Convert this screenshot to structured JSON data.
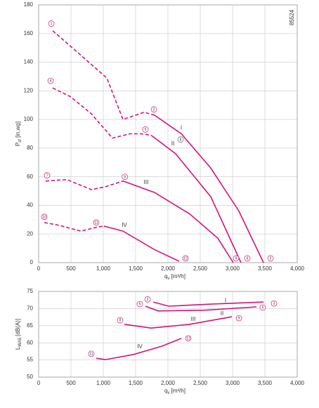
{
  "chart_data": [
    {
      "type": "line",
      "code": "85524",
      "xlabel": {
        "main": "q",
        "sub": "v",
        "unit": "[m³/h]"
      },
      "ylabel": {
        "main": "P",
        "sub": "sf",
        "unit": "[in,wg]"
      },
      "xlim": [
        0,
        4000
      ],
      "ylim": [
        0,
        180
      ],
      "xticks": [
        0,
        500,
        {
          "value": 1000,
          "label": "1,000"
        },
        {
          "value": 1500,
          "label": "1,500"
        },
        {
          "value": 2000,
          "label": "2,000"
        },
        {
          "value": 2500,
          "label": "2,500"
        },
        {
          "value": 3000,
          "label": "3,000"
        },
        {
          "value": 3500,
          "label": "3,500"
        },
        {
          "value": 4000,
          "label": "4,000"
        }
      ],
      "yticks": [
        0,
        20,
        40,
        60,
        80,
        100,
        120,
        140,
        160,
        180
      ],
      "grid": true,
      "series": [
        {
          "style": "dashed",
          "color": "#d4147a",
          "x": [
            217,
            1054,
            1304,
            1630,
            1793
          ],
          "values": [
            162,
            129,
            100,
            105,
            103
          ]
        },
        {
          "name": "I",
          "style": "solid",
          "color": "#d4147a",
          "x": [
            1793,
            2207,
            2663,
            3098,
            3478
          ],
          "values": [
            103,
            90,
            66,
            36,
            0
          ]
        },
        {
          "style": "dashed",
          "color": "#d4147a",
          "x": [
            217,
            489,
            815,
            1141,
            1413,
            1576,
            1739
          ],
          "values": [
            122,
            116,
            104,
            87,
            90,
            90,
            89
          ]
        },
        {
          "name": "II",
          "style": "solid",
          "color": "#d4147a",
          "x": [
            1739,
            2120,
            2663,
            3130
          ],
          "values": [
            89,
            76,
            46,
            0
          ]
        },
        {
          "style": "dashed",
          "color": "#d4147a",
          "x": [
            109,
            435,
            815,
            1033,
            1304
          ],
          "values": [
            57,
            58,
            51,
            53,
            57
          ]
        },
        {
          "name": "III",
          "style": "solid",
          "color": "#d4147a",
          "x": [
            1304,
            1793,
            2337,
            2772,
            3011
          ],
          "values": [
            57,
            49,
            34,
            17,
            0
          ]
        },
        {
          "style": "dashed",
          "color": "#d4147a",
          "x": [
            87,
            326,
            652,
            924,
            1011
          ],
          "values": [
            28,
            26,
            22,
            25,
            25.5
          ]
        },
        {
          "name": "IV",
          "style": "solid",
          "color": "#d4147a",
          "x": [
            1011,
            1304,
            1793,
            2174
          ],
          "values": [
            25.5,
            22,
            9,
            1
          ]
        }
      ],
      "curve_labels": [
        {
          "text": "I",
          "x": 2207,
          "y": 94
        },
        {
          "text": "II",
          "x": 2076,
          "y": 83
        },
        {
          "text": "III",
          "x": 1663,
          "y": 56
        },
        {
          "text": "IV",
          "x": 1326,
          "y": 26
        }
      ],
      "markers": [
        {
          "label": "1",
          "x": 196,
          "y": 167
        },
        {
          "label": "2",
          "x": 1783,
          "y": 107
        },
        {
          "label": "3",
          "x": 3587,
          "y": 3
        },
        {
          "label": "4",
          "x": 185,
          "y": 127
        },
        {
          "label": "5",
          "x": 1652,
          "y": 93
        },
        {
          "label": "6",
          "x": 3228,
          "y": 3
        },
        {
          "label": "7",
          "x": 130,
          "y": 61
        },
        {
          "label": "8",
          "x": 1333,
          "y": 60
        },
        {
          "label": "9",
          "x": 3054,
          "y": 3
        },
        {
          "label": "10",
          "x": 87,
          "y": 32
        },
        {
          "label": "11",
          "x": 891,
          "y": 28
        },
        {
          "label": "12",
          "x": 2272,
          "y": 3
        },
        {
          "label": "8",
          "x": 2196,
          "y": 86,
          "color": "#666666"
        }
      ]
    },
    {
      "type": "line",
      "xlabel": {
        "main": "q",
        "sub": "v",
        "unit": "[m³/h]"
      },
      "ylabel": {
        "main": "L",
        "sub": "WA5",
        "unit": "[dB(A)]"
      },
      "xlim": [
        0,
        4000
      ],
      "ylim": [
        50,
        75
      ],
      "xticks": [
        0,
        500,
        {
          "value": 1000,
          "label": "1,000"
        },
        {
          "value": 1500,
          "label": "1,500"
        },
        {
          "value": 2000,
          "label": "2,000"
        },
        {
          "value": 2500,
          "label": "2,500"
        },
        {
          "value": 3000,
          "label": "3,000"
        },
        {
          "value": 3500,
          "label": "3,500"
        },
        {
          "value": 4000,
          "label": "4,000"
        }
      ],
      "yticks": [
        50,
        55,
        60,
        65,
        70,
        75
      ],
      "grid": true,
      "series": [
        {
          "name": "I",
          "style": "solid",
          "color": "#d4147a",
          "x": [
            1772,
            2011,
            2663,
            3478
          ],
          "values": [
            71.9,
            70.7,
            71.3,
            71.9
          ]
        },
        {
          "name": "II",
          "style": "solid",
          "color": "#d4147a",
          "x": [
            1652,
            1848,
            2554,
            3370
          ],
          "values": [
            70.7,
            69.3,
            69.5,
            70.5
          ]
        },
        {
          "name": "III",
          "style": "solid",
          "color": "#d4147a",
          "x": [
            1326,
            1739,
            2337,
            2989
          ],
          "values": [
            65.4,
            64.3,
            65.4,
            67.6
          ]
        },
        {
          "name": "IV",
          "style": "solid",
          "color": "#d4147a",
          "x": [
            891,
            1033,
            1467,
            1902,
            2207
          ],
          "values": [
            55.5,
            55.1,
            56.6,
            59,
            61.3
          ]
        }
      ],
      "curve_labels": [
        {
          "text": "I",
          "x": 2891,
          "y": 72.3
        },
        {
          "text": "II",
          "x": 2837,
          "y": 68.5
        },
        {
          "text": "III",
          "x": 2391,
          "y": 66.8
        },
        {
          "text": "IV",
          "x": 1565,
          "y": 58.8
        }
      ],
      "markers": [
        {
          "label": "2",
          "x": 1685,
          "y": 72.7
        },
        {
          "label": "3",
          "x": 3641,
          "y": 71.5
        },
        {
          "label": "5",
          "x": 1565,
          "y": 71.3
        },
        {
          "label": "6",
          "x": 3467,
          "y": 70.3
        },
        {
          "label": "8",
          "x": 1261,
          "y": 66.6
        },
        {
          "label": "9",
          "x": 3098,
          "y": 67.2
        },
        {
          "label": "11",
          "x": 815,
          "y": 56.8
        },
        {
          "label": "12",
          "x": 2315,
          "y": 61.3
        }
      ]
    }
  ]
}
